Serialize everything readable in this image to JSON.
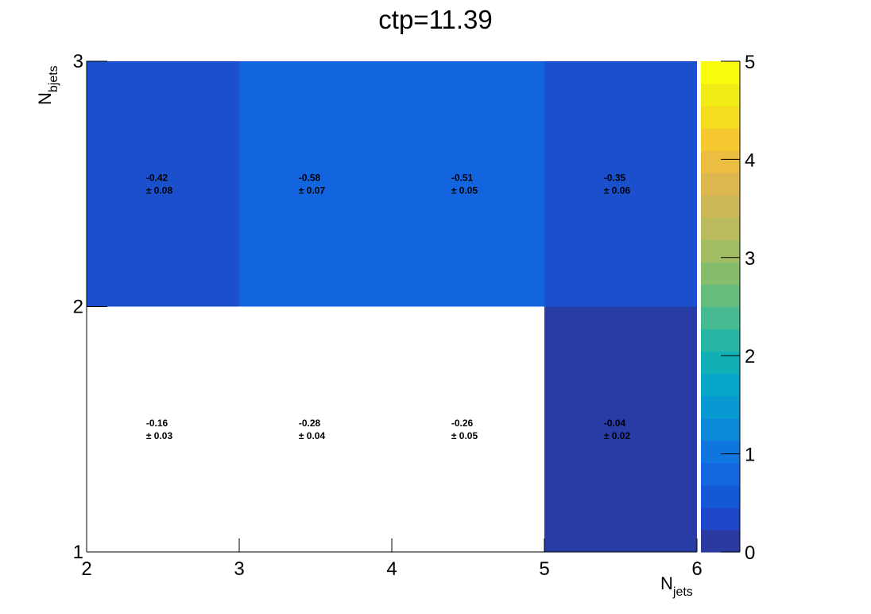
{
  "chart_data": {
    "type": "heatmap",
    "title": "ctp=11.39",
    "xlabel": {
      "main": "N",
      "sub": "jets"
    },
    "ylabel": {
      "main": "N",
      "sub": "bjets"
    },
    "x_edges": [
      2,
      3,
      4,
      5,
      6
    ],
    "y_edges": [
      1,
      2,
      3
    ],
    "x_ticks": [
      2,
      3,
      4,
      5,
      6
    ],
    "y_ticks": [
      1,
      2,
      3
    ],
    "xlim": [
      2,
      6
    ],
    "ylim": [
      1,
      3
    ],
    "zlim": [
      0,
      5
    ],
    "z_ticks": [
      0,
      1,
      2,
      3,
      4,
      5
    ],
    "grid": false,
    "palette": [
      "#2a3aa0",
      "#1d47c8",
      "#1458d8",
      "#1266e0",
      "#0f76df",
      "#0c88d9",
      "#0898d2",
      "#06a6c8",
      "#13afb7",
      "#27b6a6",
      "#46ba90",
      "#66bc7c",
      "#86bd6d",
      "#a2bd63",
      "#b9bb5c",
      "#ccb857",
      "#dcb84e",
      "#ebbd40",
      "#f7c930",
      "#f5dc1f",
      "#f1ec16",
      "#f9fa0e"
    ],
    "cells": [
      {
        "x": 2,
        "y": 2,
        "value": -0.42,
        "error": 0.08,
        "fill": "#1a50cc",
        "label": "-0.42",
        "err_label": "± 0.08"
      },
      {
        "x": 3,
        "y": 2,
        "value": -0.58,
        "error": 0.07,
        "fill": "#1265de",
        "label": "-0.58",
        "err_label": "± 0.07"
      },
      {
        "x": 4,
        "y": 2,
        "value": -0.51,
        "error": 0.05,
        "fill": "#1265de",
        "label": "-0.51",
        "err_label": "± 0.05"
      },
      {
        "x": 5,
        "y": 2,
        "value": -0.35,
        "error": 0.06,
        "fill": "#1a50cc",
        "label": "-0.35",
        "err_label": "± 0.06"
      },
      {
        "x": 2,
        "y": 1,
        "value": -0.16,
        "error": 0.03,
        "fill": "#ffffff",
        "label": "-0.16",
        "err_label": "± 0.03"
      },
      {
        "x": 3,
        "y": 1,
        "value": -0.28,
        "error": 0.04,
        "fill": "#ffffff",
        "label": "-0.28",
        "err_label": "± 0.04"
      },
      {
        "x": 4,
        "y": 1,
        "value": -0.26,
        "error": 0.05,
        "fill": "#ffffff",
        "label": "-0.26",
        "err_label": "± 0.05"
      },
      {
        "x": 5,
        "y": 1,
        "value": -0.04,
        "error": 0.02,
        "fill": "#283ca6",
        "label": "-0.04",
        "err_label": "± 0.02"
      }
    ]
  }
}
